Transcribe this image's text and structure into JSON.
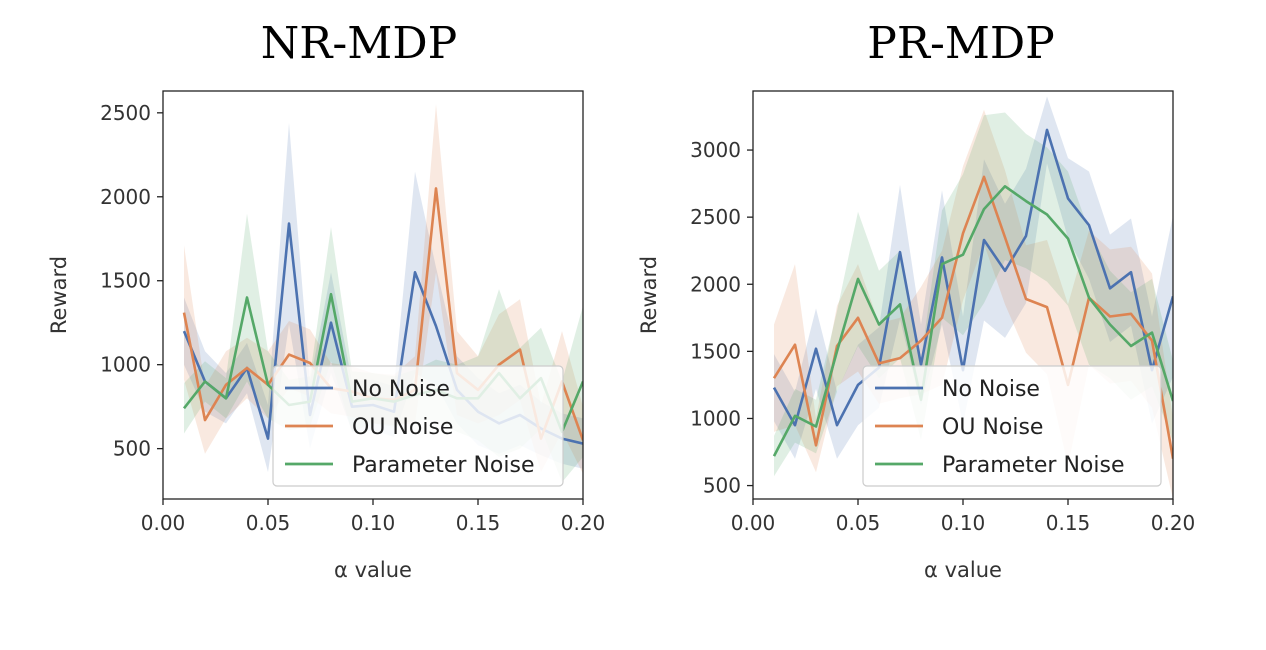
{
  "chart_data": [
    {
      "type": "line",
      "title": "NR-MDP",
      "xlabel": "α value",
      "ylabel": "Reward",
      "xlim": [
        0.0,
        0.2
      ],
      "ylim": [
        200,
        2630
      ],
      "xticks": [
        0.0,
        0.05,
        0.1,
        0.15,
        0.2
      ],
      "xtick_labels": [
        "0.00",
        "0.05",
        "0.10",
        "0.15",
        "0.20"
      ],
      "yticks": [
        500,
        1000,
        1500,
        2000,
        2500
      ],
      "ytick_labels": [
        "500",
        "1000",
        "1500",
        "2000",
        "2500"
      ],
      "grid": false,
      "legend": "lower-right",
      "x": [
        0.01,
        0.02,
        0.03,
        0.04,
        0.05,
        0.06,
        0.07,
        0.08,
        0.09,
        0.1,
        0.11,
        0.12,
        0.13,
        0.14,
        0.15,
        0.16,
        0.17,
        0.18,
        0.19,
        0.2
      ],
      "series": [
        {
          "name": "No Noise",
          "color": "#4c72b0",
          "values": [
            1200,
            900,
            800,
            980,
            560,
            1840,
            700,
            1250,
            750,
            760,
            720,
            1550,
            1230,
            850,
            720,
            650,
            700,
            620,
            560,
            530
          ],
          "band": [
            200,
            180,
            150,
            150,
            200,
            600,
            200,
            300,
            150,
            150,
            150,
            600,
            350,
            200,
            200,
            180,
            180,
            160,
            150,
            150
          ]
        },
        {
          "name": "OU Noise",
          "color": "#dd8452",
          "values": [
            1310,
            670,
            880,
            980,
            880,
            1060,
            1010,
            860,
            840,
            800,
            790,
            850,
            2050,
            950,
            850,
            1000,
            1090,
            560,
            900,
            550
          ],
          "band": [
            400,
            200,
            200,
            180,
            200,
            200,
            200,
            150,
            150,
            150,
            150,
            200,
            500,
            250,
            200,
            300,
            300,
            200,
            300,
            200
          ]
        },
        {
          "name": "Parameter Noise",
          "color": "#55a868",
          "values": [
            740,
            900,
            800,
            1400,
            880,
            760,
            780,
            1420,
            780,
            800,
            780,
            820,
            850,
            800,
            800,
            950,
            800,
            920,
            600,
            900
          ],
          "band": [
            150,
            120,
            120,
            500,
            200,
            150,
            150,
            400,
            180,
            150,
            150,
            150,
            180,
            200,
            250,
            500,
            300,
            300,
            300,
            450
          ]
        }
      ]
    },
    {
      "type": "line",
      "title": "PR-MDP",
      "xlabel": "α value",
      "ylabel": "Reward",
      "xlim": [
        0.0,
        0.2
      ],
      "ylim": [
        400,
        3440
      ],
      "xticks": [
        0.0,
        0.05,
        0.1,
        0.15,
        0.2
      ],
      "xtick_labels": [
        "0.00",
        "0.05",
        "0.10",
        "0.15",
        "0.20"
      ],
      "yticks": [
        500,
        1000,
        1500,
        2000,
        2500,
        3000
      ],
      "ytick_labels": [
        "500",
        "1000",
        "1500",
        "2000",
        "2500",
        "3000"
      ],
      "grid": false,
      "legend": "lower-right",
      "x": [
        0.01,
        0.02,
        0.03,
        0.04,
        0.05,
        0.06,
        0.07,
        0.08,
        0.09,
        0.1,
        0.11,
        0.12,
        0.13,
        0.14,
        0.15,
        0.16,
        0.17,
        0.18,
        0.19,
        0.2
      ],
      "series": [
        {
          "name": "No Noise",
          "color": "#4c72b0",
          "values": [
            1230,
            950,
            1520,
            950,
            1250,
            1380,
            2240,
            1400,
            2200,
            1360,
            2330,
            2100,
            2360,
            3150,
            2640,
            2440,
            1970,
            2090,
            1360,
            1910
          ],
          "band": [
            250,
            250,
            300,
            250,
            300,
            300,
            500,
            300,
            500,
            400,
            600,
            500,
            500,
            250,
            300,
            400,
            400,
            400,
            400,
            600
          ]
        },
        {
          "name": "OU Noise",
          "color": "#dd8452",
          "values": [
            1300,
            1550,
            800,
            1540,
            1750,
            1410,
            1450,
            1580,
            1750,
            2380,
            2800,
            2350,
            1890,
            1830,
            1250,
            1900,
            1760,
            1780,
            1580,
            700
          ],
          "band": [
            400,
            600,
            200,
            300,
            400,
            300,
            300,
            400,
            500,
            500,
            500,
            500,
            400,
            500,
            600,
            500,
            500,
            500,
            500,
            300
          ]
        },
        {
          "name": "Parameter Noise",
          "color": "#55a868",
          "values": [
            720,
            1020,
            940,
            1500,
            2040,
            1700,
            1850,
            1140,
            2150,
            2220,
            2560,
            2730,
            2620,
            2520,
            2340,
            1900,
            1700,
            1540,
            1640,
            1130
          ],
          "band": [
            150,
            200,
            200,
            300,
            500,
            400,
            400,
            300,
            400,
            600,
            700,
            550,
            500,
            500,
            500,
            500,
            400,
            400,
            400,
            300
          ]
        }
      ]
    }
  ]
}
